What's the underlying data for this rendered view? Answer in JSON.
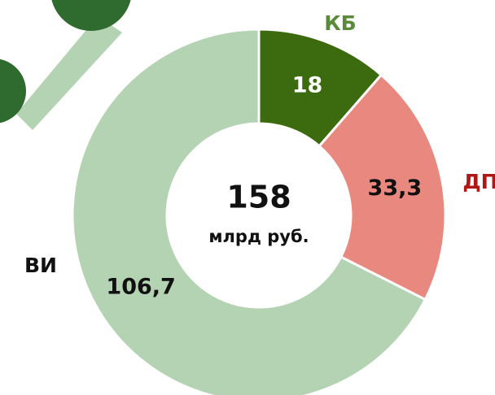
{
  "chart_data": {
    "type": "donut",
    "categories": [
      "КБ",
      "ДП",
      "ВИ"
    ],
    "values": [
      18,
      33.3,
      106.7
    ],
    "value_labels": [
      "18",
      "33,3",
      "106,7"
    ],
    "colors": [
      "#3b6b0e",
      "#e8887f",
      "#b4d3b2"
    ],
    "category_label_colors": [
      "#5a8a3a",
      "#b01818",
      "#111111"
    ],
    "value_label_colors": [
      "#ffffff",
      "#111111",
      "#111111"
    ],
    "center_value": 158,
    "center_label": "млрд руб."
  }
}
